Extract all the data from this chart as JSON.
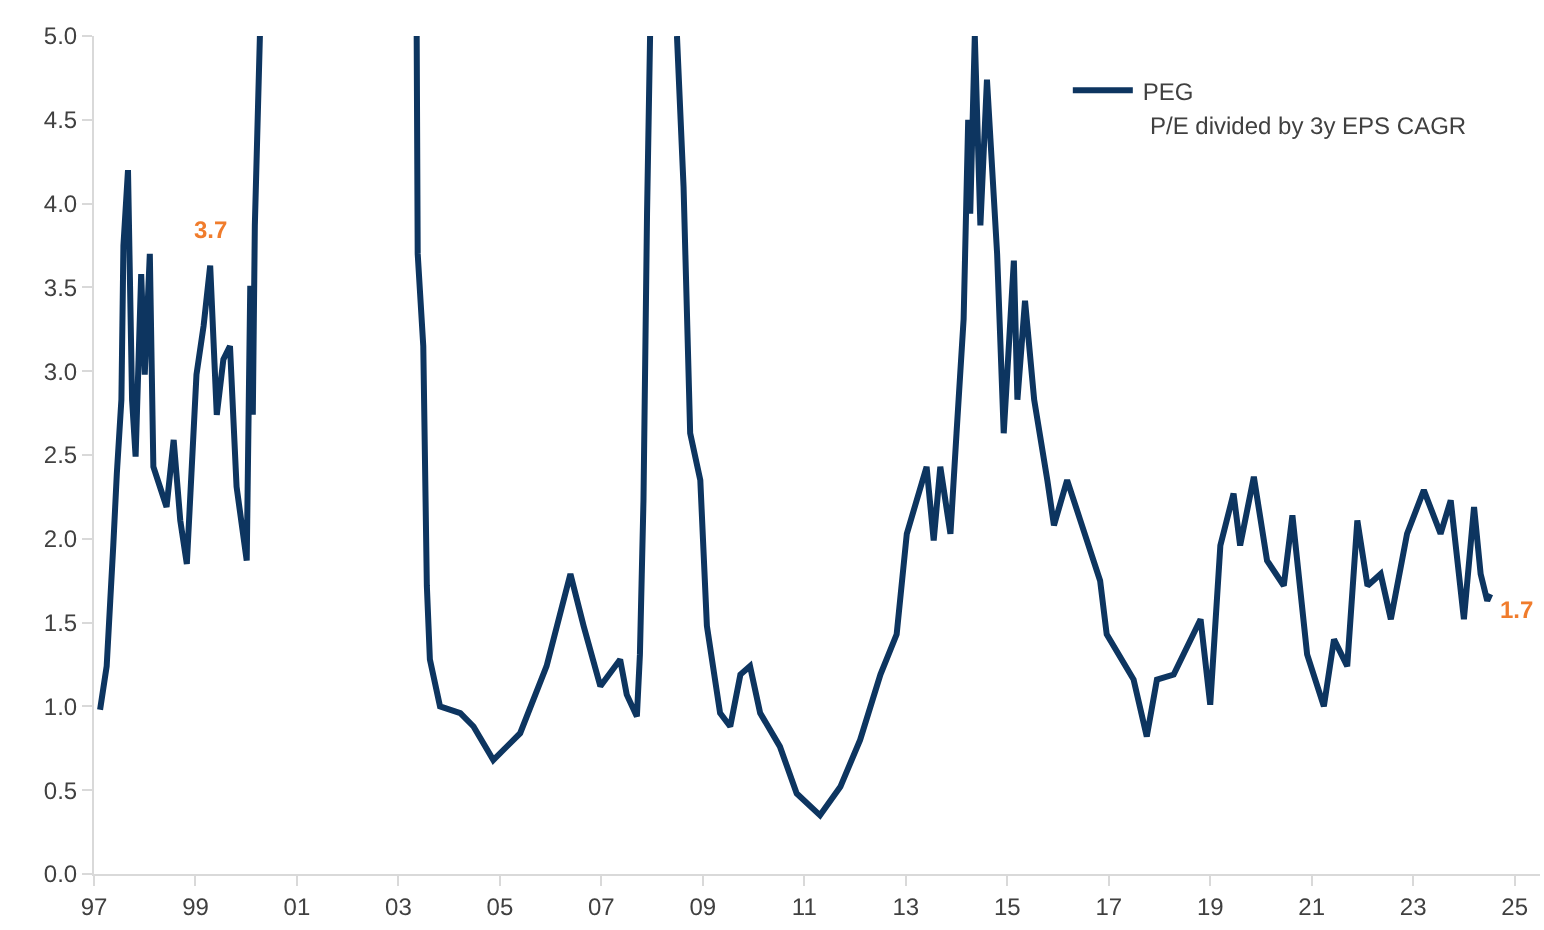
{
  "chart_data": {
    "type": "line",
    "legend": "top right",
    "grid": false,
    "marker": "none",
    "line_style": "solid",
    "xlim": [
      1997,
      2025.5
    ],
    "xticks": [
      {
        "value": 1997,
        "label": "97"
      },
      {
        "value": 1999,
        "label": "99"
      },
      {
        "value": 2001,
        "label": "01"
      },
      {
        "value": 2003,
        "label": "03"
      },
      {
        "value": 2005,
        "label": "05"
      },
      {
        "value": 2007,
        "label": "07"
      },
      {
        "value": 2009,
        "label": "09"
      },
      {
        "value": 2011,
        "label": "11"
      },
      {
        "value": 2013,
        "label": "13"
      },
      {
        "value": 2015,
        "label": "15"
      },
      {
        "value": 2017,
        "label": "17"
      },
      {
        "value": 2019,
        "label": "19"
      },
      {
        "value": 2021,
        "label": "21"
      },
      {
        "value": 2023,
        "label": "23"
      },
      {
        "value": 2025,
        "label": "25"
      }
    ],
    "ylim": [
      0,
      5
    ],
    "yticks": [
      {
        "value": 0,
        "label": "0.0"
      },
      {
        "value": 0.5,
        "label": "0.5"
      },
      {
        "value": 1,
        "label": "1.0"
      },
      {
        "value": 1.5,
        "label": "1.5"
      },
      {
        "value": 2,
        "label": "2.0"
      },
      {
        "value": 2.5,
        "label": "2.5"
      },
      {
        "value": 3,
        "label": "3.0"
      },
      {
        "value": 3.5,
        "label": "3.5"
      },
      {
        "value": 4,
        "label": "4.0"
      },
      {
        "value": 4.5,
        "label": "4.5"
      },
      {
        "value": 5,
        "label": "5.0"
      }
    ],
    "annotations": [
      {
        "text": "3.7",
        "x": 1999.29,
        "y": 3.63
      },
      {
        "text": "1.7",
        "x": 2024.52,
        "y": 1.67
      },
      "P/E divided by 3y EPS CAGR"
    ],
    "series": [
      {
        "name": "PEG",
        "color": "#0d3560",
        "x": [
          1997.12,
          1997.25,
          1997.32,
          1997.38,
          1997.45,
          1997.54,
          1997.58,
          1997.67,
          1997.75,
          1997.82,
          1997.93,
          1998.0,
          1998.1,
          1998.17,
          1998.43,
          1998.57,
          1998.7,
          1998.83,
          1999.02,
          1999.16,
          1999.29,
          1999.42,
          1999.55,
          1999.68,
          1999.81,
          2000.01,
          2000.08,
          2000.13,
          2000.17,
          2000.27,
          2001.8,
          2003.36,
          2003.38,
          2003.49,
          2003.56,
          2003.62,
          2003.82,
          2004.22,
          2004.48,
          2004.87,
          2005.4,
          2005.92,
          2006.39,
          2006.65,
          2006.98,
          2007.37,
          2007.5,
          2007.7,
          2007.76,
          2007.83,
          2007.9,
          2007.96,
          2008.2,
          2008.49,
          2008.62,
          2008.75,
          2008.95,
          2009.08,
          2009.34,
          2009.54,
          2009.74,
          2009.93,
          2010.13,
          2010.52,
          2010.85,
          2011.31,
          2011.71,
          2012.1,
          2012.5,
          2012.82,
          2013.02,
          2013.41,
          2013.55,
          2013.68,
          2013.88,
          2014.0,
          2014.14,
          2014.23,
          2014.27,
          2014.36,
          2014.47,
          2014.6,
          2014.8,
          2014.93,
          2015.13,
          2015.2,
          2015.35,
          2015.53,
          2015.79,
          2015.92,
          2016.18,
          2016.44,
          2016.83,
          2016.96,
          2017.49,
          2017.75,
          2017.95,
          2018.28,
          2018.81,
          2019.0,
          2019.2,
          2019.46,
          2019.59,
          2019.86,
          2020.12,
          2020.45,
          2020.62,
          2020.91,
          2021.24,
          2021.44,
          2021.7,
          2021.9,
          2022.1,
          2022.36,
          2022.56,
          2022.88,
          2023.21,
          2023.54,
          2023.74,
          2024.0,
          2024.2,
          2024.33,
          2024.46,
          2024.52
        ],
        "values": [
          0.98,
          1.24,
          1.63,
          1.96,
          2.39,
          2.83,
          3.75,
          4.2,
          2.83,
          2.49,
          3.58,
          2.98,
          3.7,
          2.43,
          2.19,
          2.59,
          2.11,
          1.85,
          2.98,
          3.27,
          3.63,
          2.74,
          3.07,
          3.15,
          2.31,
          1.87,
          3.51,
          2.74,
          3.87,
          5.0,
          null,
          5.0,
          3.7,
          3.15,
          1.72,
          1.28,
          1.0,
          0.96,
          0.88,
          0.68,
          0.84,
          1.24,
          1.79,
          1.48,
          1.12,
          1.28,
          1.07,
          0.94,
          1.31,
          2.23,
          3.94,
          5.0,
          null,
          5.0,
          4.1,
          2.63,
          2.35,
          1.48,
          0.96,
          0.88,
          1.19,
          1.24,
          0.96,
          0.76,
          0.48,
          0.35,
          0.52,
          0.8,
          1.19,
          1.43,
          2.03,
          2.43,
          1.99,
          2.43,
          2.03,
          2.63,
          3.31,
          4.5,
          3.94,
          5.0,
          3.87,
          4.74,
          3.7,
          2.63,
          3.66,
          2.83,
          3.42,
          2.83,
          2.35,
          2.08,
          2.35,
          2.11,
          1.75,
          1.43,
          1.16,
          0.82,
          1.16,
          1.19,
          1.52,
          1.01,
          1.96,
          2.27,
          1.96,
          2.37,
          1.87,
          1.72,
          2.14,
          1.31,
          1.0,
          1.4,
          1.24,
          2.11,
          1.72,
          1.79,
          1.52,
          2.03,
          2.29,
          2.03,
          2.23,
          1.52,
          2.19,
          1.79,
          1.63,
          1.67
        ]
      }
    ]
  }
}
